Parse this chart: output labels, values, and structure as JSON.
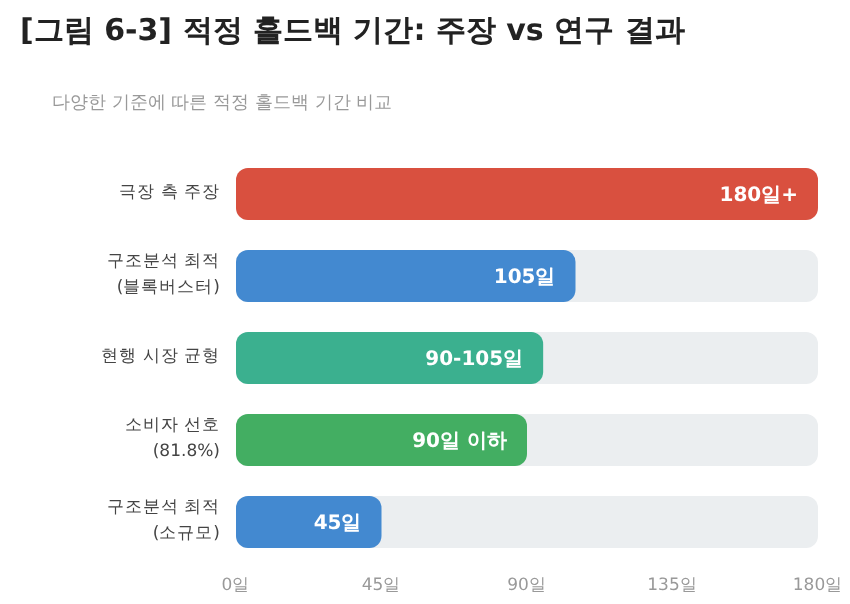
{
  "chart_data": {
    "type": "bar",
    "orientation": "horizontal",
    "title": "[그림 6-3] 적정 홀드백 기간: 주장 vs 연구 결과",
    "subtitle": "다양한 기준에 따른 적정 홀드백 기간 비교",
    "categories": [
      "극장 측 주장",
      "구조분석 최적\n(블록버스터)",
      "현행 시장 균형",
      "소비자 선호\n(81.8%)",
      "구조분석 최적\n(소규모)"
    ],
    "values": [
      180,
      105,
      95,
      90,
      45
    ],
    "colors": [
      "#d9503f",
      "#4389d0",
      "#3bb08f",
      "#43ae62",
      "#4389d0"
    ],
    "value_labels": [
      "180일+",
      "105일",
      "90-105일",
      "90일 이하",
      "45일"
    ],
    "xlim": [
      0,
      180
    ],
    "xticks": [
      {
        "value": 0,
        "label": "0일"
      },
      {
        "value": 45,
        "label": "45일"
      },
      {
        "value": 90,
        "label": "90일"
      },
      {
        "value": 135,
        "label": "135일"
      },
      {
        "value": 180,
        "label": "180일"
      }
    ]
  }
}
